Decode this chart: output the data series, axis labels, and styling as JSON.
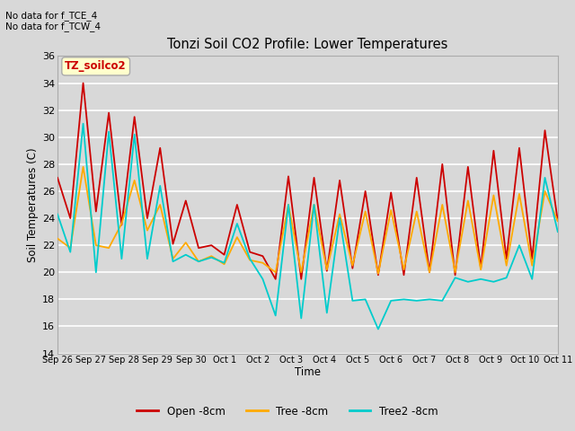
{
  "title": "Tonzi Soil CO2 Profile: Lower Temperatures",
  "ylabel": "Soil Temperatures (C)",
  "xlabel": "Time",
  "subtitle_line1": "No data for f_TCE_4",
  "subtitle_line2": "No data for f_TCW_4",
  "watermark": "TZ_soilco2",
  "ylim": [
    14,
    36
  ],
  "yticks": [
    14,
    16,
    18,
    20,
    22,
    24,
    26,
    28,
    30,
    32,
    34,
    36
  ],
  "xtick_labels": [
    "Sep 26",
    "Sep 27",
    "Sep 28",
    "Sep 29",
    "Sep 30",
    "Oct 1",
    "Oct 2",
    "Oct 3",
    "Oct 4",
    "Oct 5",
    "Oct 6",
    "Oct 7",
    "Oct 8",
    "Oct 9",
    "Oct 10",
    "Oct 11"
  ],
  "color_open": "#cc0000",
  "color_tree": "#ffaa00",
  "color_tree2": "#00cccc",
  "label_open": "Open -8cm",
  "label_tree": "Tree -8cm",
  "label_tree2": "Tree2 -8cm",
  "bg_color": "#d8d8d8",
  "grid_color": "#ffffff",
  "open_8cm": [
    27.0,
    24.0,
    34.0,
    24.5,
    31.8,
    23.5,
    31.5,
    24.0,
    29.2,
    22.1,
    25.3,
    21.8,
    22.0,
    21.3,
    25.0,
    21.5,
    21.2,
    19.5,
    27.1,
    19.5,
    27.0,
    20.1,
    26.8,
    20.3,
    26.0,
    19.8,
    25.9,
    19.8,
    27.0,
    20.0,
    28.0,
    19.8,
    27.8,
    20.3,
    29.0,
    21.0,
    29.2,
    21.0,
    30.5,
    23.8
  ],
  "tree_8cm": [
    22.5,
    21.8,
    27.8,
    22.0,
    21.8,
    23.6,
    26.8,
    23.1,
    25.0,
    21.0,
    22.2,
    20.8,
    21.2,
    20.6,
    22.6,
    20.9,
    20.7,
    20.0,
    25.0,
    20.0,
    25.0,
    20.2,
    24.3,
    20.5,
    24.5,
    19.9,
    24.6,
    20.2,
    24.5,
    20.0,
    25.0,
    20.0,
    25.3,
    20.2,
    25.7,
    20.5,
    25.8,
    20.5,
    26.0,
    23.8
  ],
  "tree2_8cm": [
    24.3,
    21.5,
    31.0,
    20.0,
    30.4,
    21.0,
    30.2,
    21.0,
    26.4,
    20.8,
    21.3,
    20.8,
    21.1,
    20.7,
    23.6,
    21.0,
    19.5,
    16.8,
    25.0,
    16.6,
    25.0,
    17.0,
    24.0,
    17.9,
    18.0,
    15.8,
    17.9,
    18.0,
    17.9,
    18.0,
    17.9,
    19.6,
    19.3,
    19.5,
    19.3,
    19.6,
    22.0,
    19.5,
    27.0,
    23.0
  ]
}
